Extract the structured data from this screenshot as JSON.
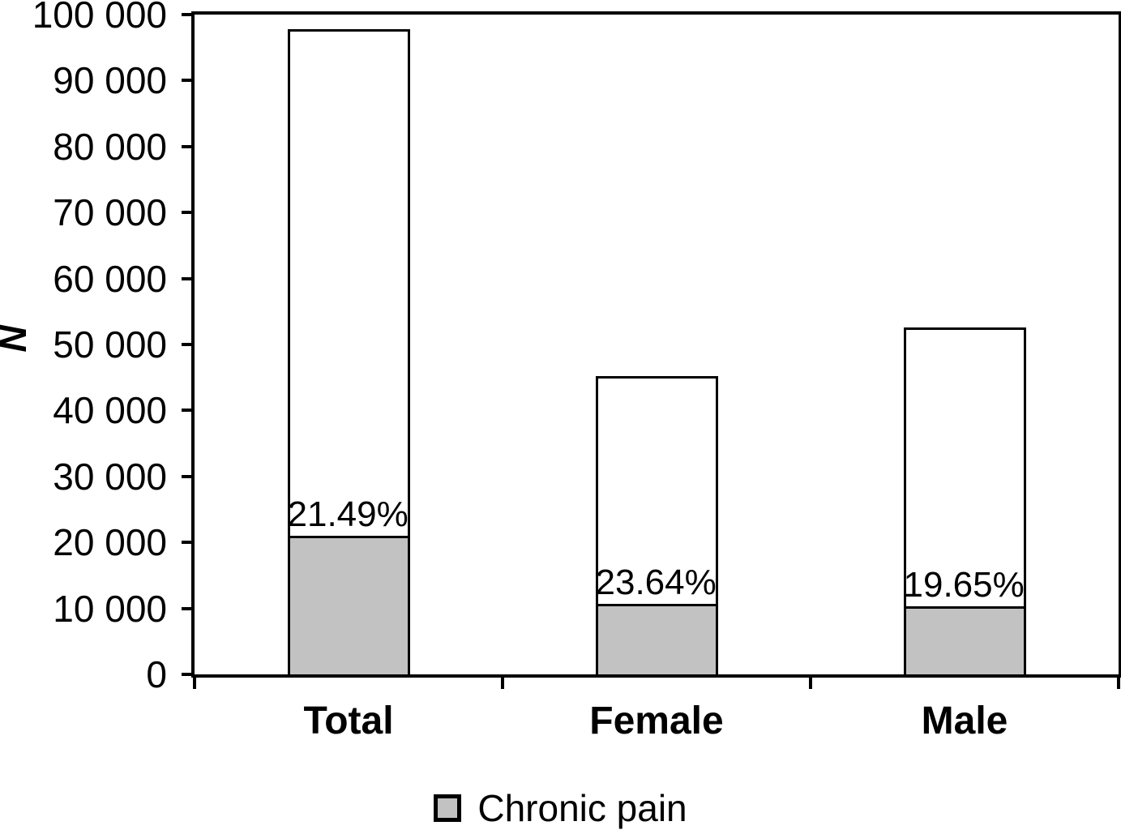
{
  "chart_data": {
    "type": "bar",
    "stacked": true,
    "title": "",
    "xlabel": "",
    "ylabel": "N",
    "ylim": [
      0,
      100000
    ],
    "grid": false,
    "legend_position": "bottom-center",
    "categories": [
      "Total",
      "Female",
      "Male"
    ],
    "y_ticks": [
      {
        "value": 100000,
        "label": "100 000"
      },
      {
        "value": 90000,
        "label": "90 000"
      },
      {
        "value": 80000,
        "label": "80 000"
      },
      {
        "value": 70000,
        "label": "70 000"
      },
      {
        "value": 60000,
        "label": "60 000"
      },
      {
        "value": 50000,
        "label": "50 000"
      },
      {
        "value": 40000,
        "label": "40 000"
      },
      {
        "value": 30000,
        "label": "30 000"
      },
      {
        "value": 20000,
        "label": "20 000"
      },
      {
        "value": 10000,
        "label": "10 000"
      },
      {
        "value": 0,
        "label": "0"
      }
    ],
    "bars": [
      {
        "category": "Total",
        "total_n": 97800,
        "chronic_pain_n": 21000,
        "pct_label": "21.49%"
      },
      {
        "category": "Female",
        "total_n": 45200,
        "chronic_pain_n": 10700,
        "pct_label": "23.64%"
      },
      {
        "category": "Male",
        "total_n": 52600,
        "chronic_pain_n": 10300,
        "pct_label": "19.65%"
      }
    ],
    "series": [
      {
        "name": "Chronic pain",
        "values": [
          21000,
          10700,
          10300
        ],
        "color": "#c2c2c2"
      }
    ],
    "colors": {
      "bar_fill": "#ffffff",
      "chronic_fill": "#c2c2c2",
      "stroke": "#000000"
    }
  },
  "legend": {
    "label": "Chronic pain"
  }
}
